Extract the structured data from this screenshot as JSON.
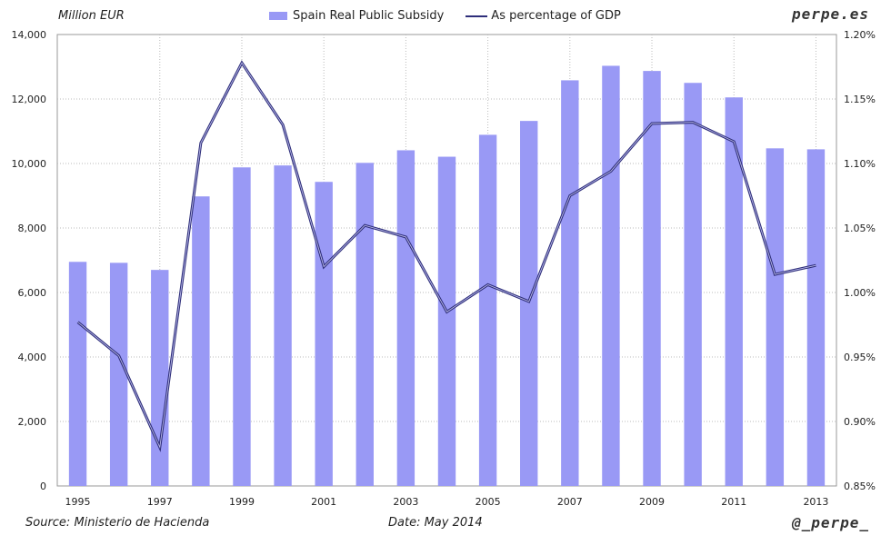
{
  "header": {
    "left_axis_label": "Million EUR",
    "brand": "perpe.es"
  },
  "footer": {
    "source": "Source: Ministerio de Hacienda",
    "date": "Date: May 2014",
    "handle": "@_perpe_"
  },
  "colors": {
    "bar": "#9999f5",
    "line": "#2e2e7a",
    "grid": "#bbbbbb"
  },
  "chart_data": {
    "type": "bar",
    "title": "",
    "xlabel": "",
    "ylabel": "Million EUR",
    "x": [
      1995,
      1996,
      1997,
      1998,
      1999,
      2000,
      2001,
      2002,
      2003,
      2004,
      2005,
      2006,
      2007,
      2008,
      2009,
      2010,
      2011,
      2012,
      2013
    ],
    "x_tick_labels": [
      "1995",
      "1997",
      "1999",
      "2001",
      "2003",
      "2005",
      "2007",
      "2009",
      "2011",
      "2013"
    ],
    "ylim": [
      0,
      14000
    ],
    "y_ticks": [
      "0",
      "2,000",
      "4,000",
      "6,000",
      "8,000",
      "10,000",
      "12,000",
      "14,000"
    ],
    "y2lim": [
      0.85,
      1.2
    ],
    "y2_ticks": [
      "0.85%",
      "0.90%",
      "0.95%",
      "1.00%",
      "1.05%",
      "1.10%",
      "1.15%",
      "1.20%"
    ],
    "series": [
      {
        "name": "Spain Real Public Subsidy",
        "type": "bar",
        "axis": "left",
        "values": [
          6950,
          6920,
          6700,
          8980,
          9880,
          9940,
          9430,
          10020,
          10410,
          10210,
          10890,
          11320,
          12580,
          13030,
          12870,
          12500,
          12050,
          10470,
          10440
        ]
      },
      {
        "name": "As percentage of GDP",
        "type": "line",
        "axis": "right",
        "values": [
          0.977,
          0.951,
          0.88,
          1.116,
          1.178,
          1.13,
          1.02,
          1.052,
          1.043,
          0.985,
          1.006,
          0.993,
          1.075,
          1.094,
          1.131,
          1.132,
          1.117,
          1.014,
          1.021
        ]
      }
    ],
    "grid": true,
    "legend": "top-center"
  }
}
